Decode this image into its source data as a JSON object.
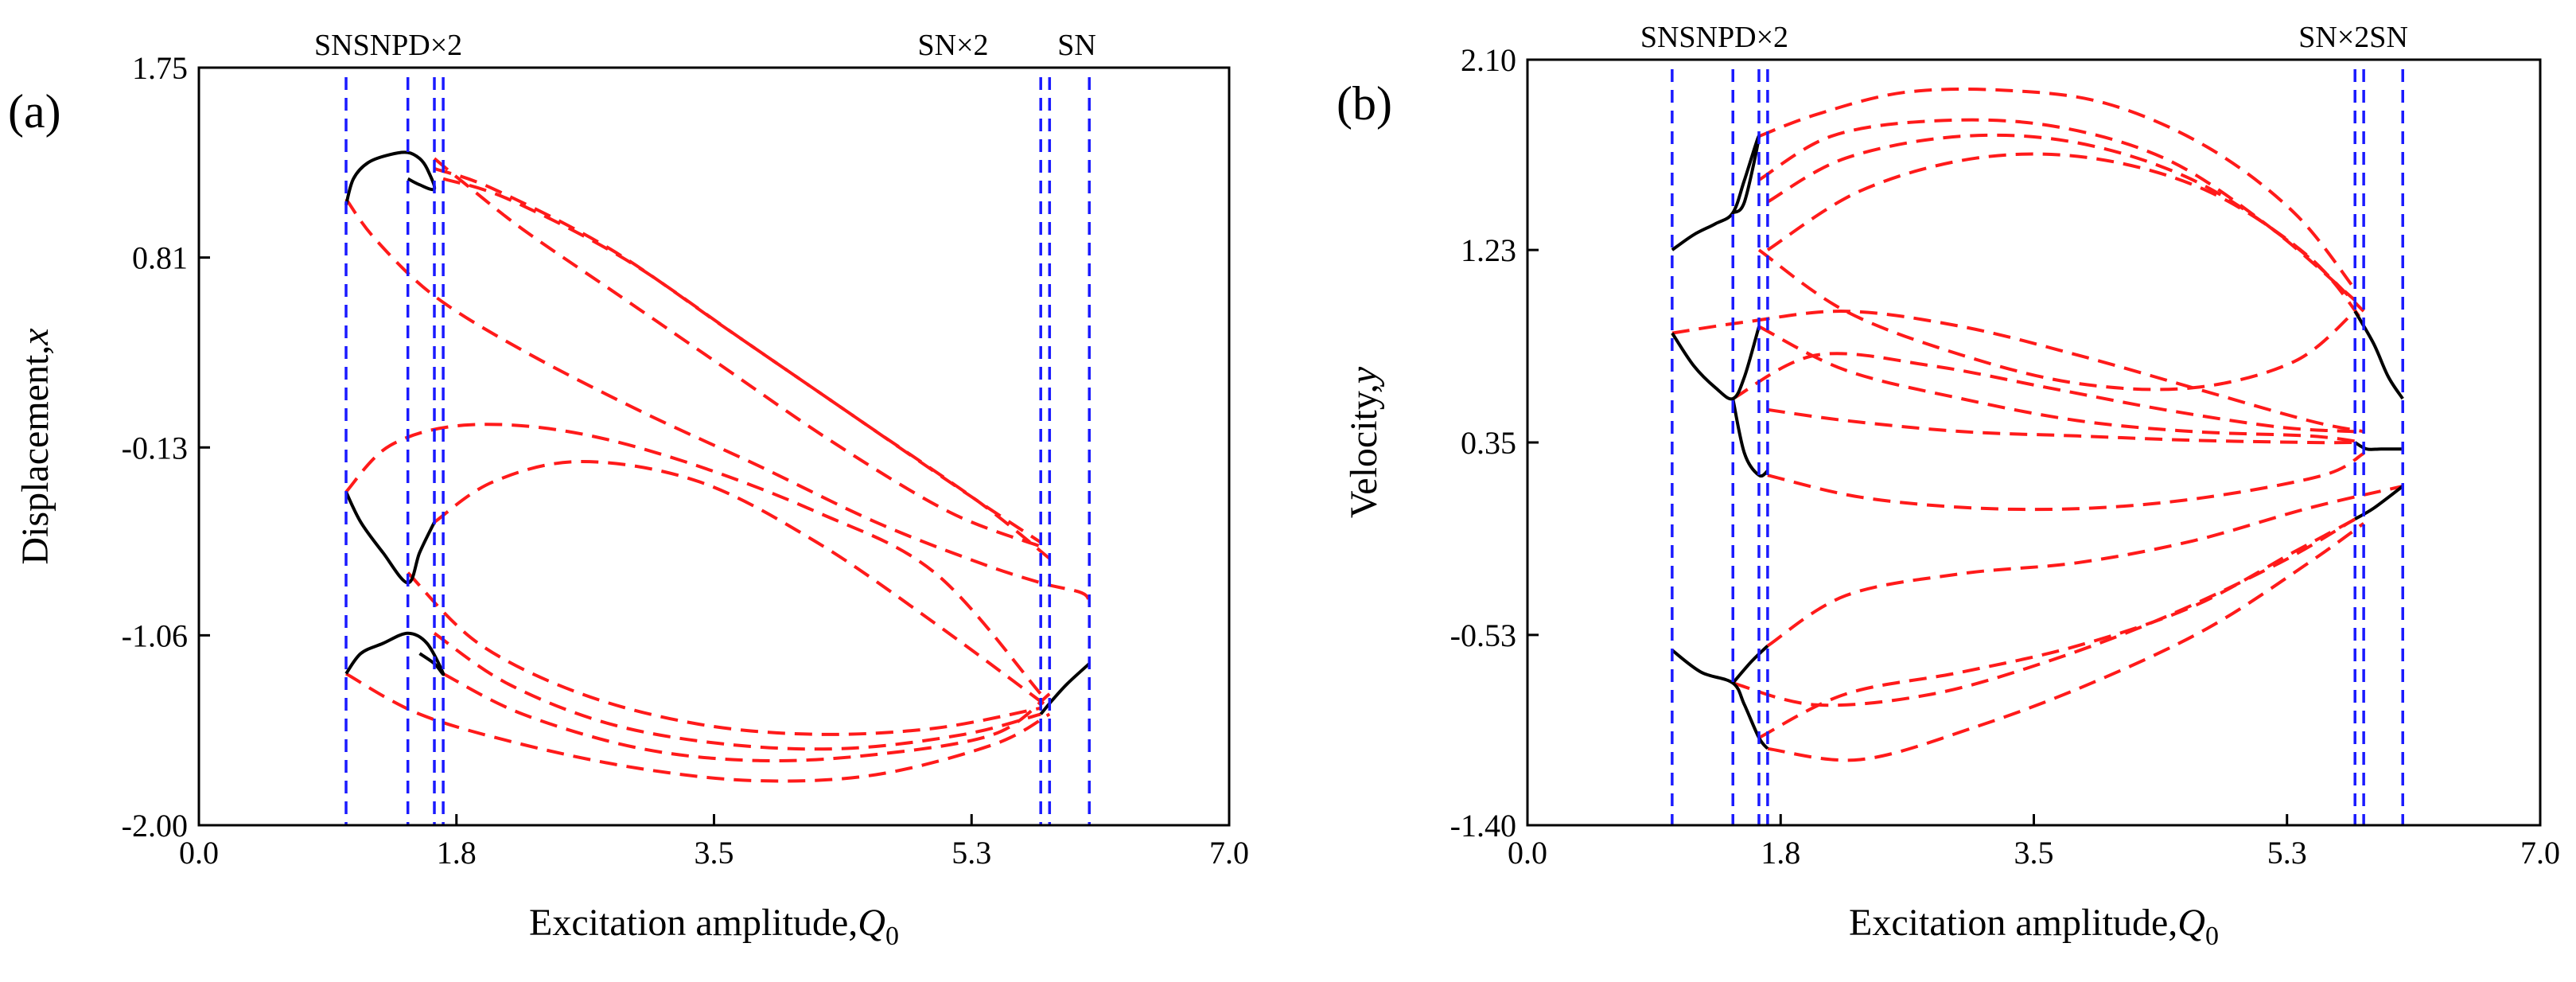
{
  "chart_data": [
    {
      "type": "line",
      "panel_label": "(a)",
      "xlabel": "Excitation amplitude,",
      "xlabel_var": "Q",
      "xlabel_sub": "0",
      "ylabel": "Displacement,",
      "ylabel_var": "x",
      "xlim": [
        0.0,
        7.0
      ],
      "ylim": [
        -2.0,
        1.75
      ],
      "xticks": [
        "0.0",
        "1.8",
        "3.5",
        "5.3",
        "7.0"
      ],
      "xtick_values": [
        0.0,
        1.75,
        3.5,
        5.25,
        7.0
      ],
      "yticks": [
        "1.75",
        "0.81",
        "-0.13",
        "-1.06",
        "-2.00"
      ],
      "ytick_values": [
        1.75,
        0.81,
        -0.13,
        -1.06,
        -2.0
      ],
      "bifurcation_lines": [
        1.0,
        1.42,
        1.6,
        1.66,
        5.72,
        5.78,
        6.05
      ],
      "annotations": [
        {
          "text": "SNSNPD×2",
          "x": 1.0
        },
        {
          "text": "SN×2",
          "x": 5.1
        },
        {
          "text": "SN",
          "x": 6.05
        }
      ],
      "stable_series": [
        {
          "name": "stable-upper-loop",
          "x": [
            1.0,
            1.05,
            1.15,
            1.3,
            1.42,
            1.5,
            1.55,
            1.6,
            1.5,
            1.42
          ],
          "y": [
            1.07,
            1.2,
            1.28,
            1.32,
            1.33,
            1.3,
            1.25,
            1.15,
            1.17,
            1.2
          ]
        },
        {
          "name": "stable-middle",
          "x": [
            1.0,
            1.1,
            1.25,
            1.42,
            1.5,
            1.6
          ],
          "y": [
            -0.35,
            -0.5,
            -0.65,
            -0.8,
            -0.65,
            -0.5
          ]
        },
        {
          "name": "stable-lower",
          "x": [
            1.0,
            1.1,
            1.25,
            1.42,
            1.55,
            1.66,
            1.6,
            1.5
          ],
          "y": [
            -1.25,
            -1.15,
            -1.1,
            -1.05,
            -1.1,
            -1.25,
            -1.2,
            -1.15
          ]
        },
        {
          "name": "stable-right",
          "x": [
            5.72,
            5.8,
            5.9,
            6.05
          ],
          "y": [
            -1.45,
            -1.38,
            -1.3,
            -1.2
          ]
        }
      ],
      "unstable_series": [
        {
          "name": "upper-branch-1",
          "x": [
            1.0,
            1.2,
            1.6,
            2.2,
            3.0,
            3.8,
            4.6,
            5.3,
            5.72,
            6.0,
            6.05
          ],
          "y": [
            1.1,
            0.9,
            0.62,
            0.35,
            0.05,
            -0.22,
            -0.5,
            -0.7,
            -0.8,
            -0.85,
            -0.9
          ]
        },
        {
          "name": "upper-branch-2",
          "x": [
            1.6,
            2.0,
            2.8,
            3.6,
            4.4,
            5.2,
            5.72
          ],
          "y": [
            1.25,
            1.15,
            0.85,
            0.45,
            0.05,
            -0.35,
            -0.6
          ]
        },
        {
          "name": "upper-branch-3",
          "x": [
            1.66,
            2.1,
            2.9,
            3.7,
            4.5,
            5.3,
            5.78
          ],
          "y": [
            1.2,
            1.1,
            0.8,
            0.4,
            0.0,
            -0.4,
            -0.68
          ]
        },
        {
          "name": "upper-branch-4",
          "x": [
            1.6,
            1.8,
            2.2,
            2.8,
            3.5,
            4.3,
            5.1,
            5.72
          ],
          "y": [
            1.3,
            1.18,
            0.95,
            0.65,
            0.3,
            -0.1,
            -0.45,
            -0.62
          ]
        },
        {
          "name": "middle-branch-1",
          "x": [
            1.0,
            1.3,
            1.8,
            2.5,
            3.3,
            4.2,
            5.0,
            5.72
          ],
          "y": [
            -0.35,
            -0.12,
            -0.02,
            -0.05,
            -0.2,
            -0.45,
            -0.75,
            -1.35
          ]
        },
        {
          "name": "middle-branch-2",
          "x": [
            1.6,
            2.0,
            2.6,
            3.4,
            4.2,
            5.0,
            5.78
          ],
          "y": [
            -0.5,
            -0.3,
            -0.2,
            -0.3,
            -0.6,
            -1.0,
            -1.42
          ]
        },
        {
          "name": "lower-branch-1",
          "x": [
            1.0,
            1.5,
            2.2,
            3.0,
            3.8,
            4.6,
            5.4,
            5.78
          ],
          "y": [
            -1.25,
            -1.45,
            -1.6,
            -1.72,
            -1.78,
            -1.75,
            -1.6,
            -1.45
          ]
        },
        {
          "name": "lower-branch-2",
          "x": [
            1.42,
            1.9,
            2.6,
            3.4,
            4.2,
            5.0,
            5.72
          ],
          "y": [
            -0.75,
            -1.1,
            -1.35,
            -1.5,
            -1.55,
            -1.52,
            -1.42
          ]
        },
        {
          "name": "lower-branch-3",
          "x": [
            1.6,
            2.1,
            2.8,
            3.6,
            4.4,
            5.2,
            5.72
          ],
          "y": [
            -1.05,
            -1.3,
            -1.5,
            -1.6,
            -1.62,
            -1.55,
            -1.45
          ]
        },
        {
          "name": "lower-branch-4",
          "x": [
            1.66,
            2.2,
            3.0,
            3.8,
            4.6,
            5.4,
            5.78
          ],
          "y": [
            -1.25,
            -1.45,
            -1.62,
            -1.68,
            -1.65,
            -1.55,
            -1.35
          ]
        }
      ]
    },
    {
      "type": "line",
      "panel_label": "(b)",
      "xlabel": "Excitation amplitude,",
      "xlabel_var": "Q",
      "xlabel_sub": "0",
      "ylabel": "Velocity,",
      "ylabel_var": "y",
      "xlim": [
        0.0,
        7.0
      ],
      "ylim": [
        -1.4,
        2.1
      ],
      "xticks": [
        "0.0",
        "1.8",
        "3.5",
        "5.3",
        "7.0"
      ],
      "xtick_values": [
        0.0,
        1.75,
        3.5,
        5.25,
        7.0
      ],
      "yticks": [
        "2.10",
        "1.23",
        "0.35",
        "-0.53",
        "-1.40"
      ],
      "ytick_values": [
        2.1,
        1.23,
        0.35,
        -0.53,
        -1.4
      ],
      "bifurcation_lines": [
        1.0,
        1.42,
        1.6,
        1.66,
        5.72,
        5.78,
        6.05
      ],
      "annotations": [
        {
          "text": "SNSNPD×2",
          "x": 1.0
        },
        {
          "text": "SN×2SN",
          "x": 5.55
        }
      ],
      "stable_series": [
        {
          "name": "stable-upper",
          "x": [
            1.0,
            1.15,
            1.3,
            1.42,
            1.5,
            1.6,
            1.5,
            1.42
          ],
          "y": [
            1.23,
            1.3,
            1.35,
            1.4,
            1.55,
            1.75,
            1.45,
            1.4
          ]
        },
        {
          "name": "stable-mid-upper",
          "x": [
            1.0,
            1.15,
            1.3,
            1.42,
            1.5,
            1.6
          ],
          "y": [
            0.85,
            0.7,
            0.6,
            0.55,
            0.65,
            0.88
          ]
        },
        {
          "name": "stable-mid-lower",
          "x": [
            1.42,
            1.5,
            1.6,
            1.66
          ],
          "y": [
            0.55,
            0.3,
            0.2,
            0.22
          ]
        },
        {
          "name": "stable-lower",
          "x": [
            1.0,
            1.2,
            1.42,
            1.5,
            1.6,
            1.66
          ],
          "y": [
            -0.6,
            -0.7,
            -0.75,
            -0.85,
            -1.0,
            -1.05
          ]
        },
        {
          "name": "stable-lower-tip",
          "x": [
            1.42,
            1.55,
            1.66
          ],
          "y": [
            -0.75,
            -0.65,
            -0.58
          ]
        },
        {
          "name": "stable-right-upper",
          "x": [
            5.72,
            5.85,
            5.95,
            6.05
          ],
          "y": [
            0.95,
            0.8,
            0.65,
            0.55
          ]
        },
        {
          "name": "stable-right-mid",
          "x": [
            5.72,
            5.8,
            5.9,
            6.05
          ],
          "y": [
            0.35,
            0.32,
            0.32,
            0.32
          ]
        },
        {
          "name": "stable-right-lower",
          "x": [
            5.72,
            5.85,
            6.05
          ],
          "y": [
            0.0,
            0.05,
            0.15
          ]
        }
      ],
      "unstable_series": [
        {
          "name": "upper-loop-1",
          "x": [
            1.6,
            2.0,
            2.6,
            3.3,
            4.0,
            4.7,
            5.3,
            5.72
          ],
          "y": [
            1.75,
            1.85,
            1.95,
            1.96,
            1.9,
            1.7,
            1.4,
            1.05
          ]
        },
        {
          "name": "upper-loop-2",
          "x": [
            1.6,
            2.1,
            2.8,
            3.6,
            4.4,
            5.1,
            5.72
          ],
          "y": [
            1.55,
            1.75,
            1.82,
            1.8,
            1.65,
            1.35,
            1.0
          ]
        },
        {
          "name": "upper-loop-3",
          "x": [
            1.66,
            2.2,
            3.0,
            3.8,
            4.6,
            5.3,
            5.78
          ],
          "y": [
            1.45,
            1.65,
            1.75,
            1.72,
            1.55,
            1.25,
            0.95
          ]
        },
        {
          "name": "upper-loop-4",
          "x": [
            1.66,
            2.3,
            3.1,
            3.9,
            4.7,
            5.4,
            5.78
          ],
          "y": [
            1.23,
            1.5,
            1.65,
            1.65,
            1.5,
            1.2,
            0.9
          ]
        },
        {
          "name": "upper-inner-return",
          "x": [
            1.6,
            2.2,
            3.0,
            3.8,
            4.6,
            5.3,
            5.72
          ],
          "y": [
            1.23,
            0.95,
            0.75,
            0.62,
            0.6,
            0.72,
            0.95
          ]
        },
        {
          "name": "mid-1",
          "x": [
            1.0,
            1.5,
            2.2,
            3.0,
            3.8,
            4.6,
            5.4,
            5.78
          ],
          "y": [
            0.85,
            0.9,
            0.95,
            0.88,
            0.75,
            0.6,
            0.45,
            0.4
          ]
        },
        {
          "name": "mid-2",
          "x": [
            1.42,
            2.0,
            2.8,
            3.6,
            4.4,
            5.2,
            5.72
          ],
          "y": [
            0.55,
            0.75,
            0.7,
            0.6,
            0.5,
            0.42,
            0.4
          ]
        },
        {
          "name": "mid-3",
          "x": [
            1.6,
            2.2,
            3.0,
            3.8,
            4.6,
            5.4,
            5.78
          ],
          "y": [
            0.88,
            0.68,
            0.55,
            0.45,
            0.4,
            0.38,
            0.35
          ]
        },
        {
          "name": "mid-4",
          "x": [
            1.66,
            2.3,
            3.1,
            3.9,
            4.7,
            5.5,
            5.78
          ],
          "y": [
            0.2,
            0.1,
            0.05,
            0.05,
            0.1,
            0.2,
            0.3
          ]
        },
        {
          "name": "mid-5",
          "x": [
            1.66,
            2.2,
            3.0,
            3.8,
            4.6,
            5.4,
            5.72
          ],
          "y": [
            0.5,
            0.45,
            0.4,
            0.38,
            0.36,
            0.35,
            0.35
          ]
        },
        {
          "name": "lower-1",
          "x": [
            1.66,
            2.2,
            3.0,
            3.8,
            4.6,
            5.4,
            6.05
          ],
          "y": [
            -0.58,
            -0.35,
            -0.25,
            -0.2,
            -0.1,
            0.05,
            0.15
          ]
        },
        {
          "name": "lower-2",
          "x": [
            1.6,
            2.2,
            3.0,
            3.8,
            4.6,
            5.3,
            5.78
          ],
          "y": [
            -1.0,
            -0.8,
            -0.7,
            -0.58,
            -0.4,
            -0.15,
            0.02
          ]
        },
        {
          "name": "lower-3",
          "x": [
            1.66,
            2.3,
            3.1,
            3.9,
            4.7,
            5.4,
            5.78
          ],
          "y": [
            -1.05,
            -1.1,
            -0.95,
            -0.75,
            -0.5,
            -0.2,
            -0.02
          ]
        },
        {
          "name": "lower-4",
          "x": [
            1.42,
            2.0,
            2.8,
            3.6,
            4.4,
            5.2,
            5.72
          ],
          "y": [
            -0.75,
            -0.85,
            -0.8,
            -0.65,
            -0.45,
            -0.2,
            0.0
          ]
        }
      ]
    }
  ]
}
